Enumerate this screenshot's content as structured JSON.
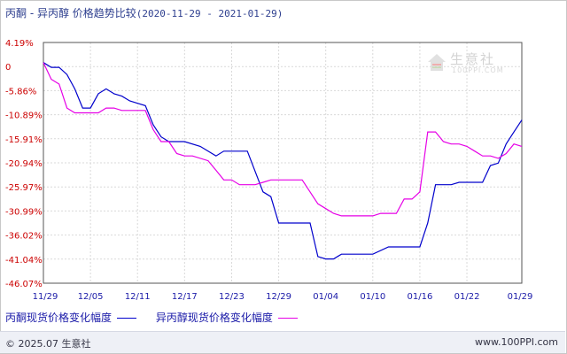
{
  "title": {
    "name": "丙酮 - 异丙醇 价格趋势比较",
    "range": "(2020-11-29 - 2021-01-29)"
  },
  "legend": {
    "series1": "丙酮现货价格变化幅度",
    "series2": "异丙醇现货价格变化幅度"
  },
  "footer": {
    "copyright": "© 2025.07 生意社",
    "url": "www.100PPI.com"
  },
  "watermark": {
    "cn": "生意社",
    "en": "100PPI.COM"
  },
  "colors": {
    "series1": "#0000cc",
    "series2": "#e600e6",
    "tick_labels": "#cc0000",
    "x_labels": "#1a1aa8"
  },
  "chart_data": {
    "type": "line",
    "title": "丙酮 - 异丙醇 价格趋势比较",
    "x_start": "11/29",
    "x_end": "01/29",
    "x_ticks": [
      "11/29",
      "12/05",
      "12/11",
      "12/17",
      "12/23",
      "12/29",
      "01/04",
      "01/10",
      "01/16",
      "01/22",
      "01/29"
    ],
    "y_ticks": [
      "4.19%",
      "0",
      "-5.86%",
      "-10.89%",
      "-15.91%",
      "-20.94%",
      "-25.97%",
      "-30.99%",
      "-36.02%",
      "-41.04%",
      "-46.07%"
    ],
    "ylim": [
      -46.07,
      4.19
    ],
    "grid": true,
    "series": [
      {
        "name": "丙酮现货价格变化幅度",
        "color": "#0000cc",
        "points": [
          [
            "11/29",
            0.0
          ],
          [
            "11/30",
            -1.0
          ],
          [
            "12/01",
            -1.0
          ],
          [
            "12/02",
            -2.5
          ],
          [
            "12/03",
            -5.5
          ],
          [
            "12/04",
            -9.5
          ],
          [
            "12/05",
            -9.5
          ],
          [
            "12/06",
            -6.5
          ],
          [
            "12/07",
            -5.5
          ],
          [
            "12/08",
            -6.5
          ],
          [
            "12/09",
            -7.0
          ],
          [
            "12/10",
            -8.0
          ],
          [
            "12/11",
            -8.5
          ],
          [
            "12/12",
            -9.0
          ],
          [
            "12/13",
            -13.0
          ],
          [
            "12/14",
            -15.5
          ],
          [
            "12/15",
            -16.5
          ],
          [
            "12/17",
            -16.5
          ],
          [
            "12/19",
            -17.5
          ],
          [
            "12/21",
            -19.5
          ],
          [
            "12/22",
            -18.5
          ],
          [
            "12/23",
            -18.5
          ],
          [
            "12/25",
            -18.5
          ],
          [
            "12/27",
            -27.0
          ],
          [
            "12/28",
            -28.0
          ],
          [
            "12/29",
            -33.5
          ],
          [
            "12/30",
            -33.5
          ],
          [
            "01/02",
            -33.5
          ],
          [
            "01/03",
            -40.5
          ],
          [
            "01/04",
            -41.0
          ],
          [
            "01/05",
            -41.0
          ],
          [
            "01/06",
            -40.0
          ],
          [
            "01/08",
            -40.0
          ],
          [
            "01/10",
            -40.0
          ],
          [
            "01/12",
            -38.5
          ],
          [
            "01/14",
            -38.5
          ],
          [
            "01/16",
            -38.5
          ],
          [
            "01/17",
            -33.5
          ],
          [
            "01/18",
            -25.5
          ],
          [
            "01/19",
            -25.5
          ],
          [
            "01/20",
            -25.5
          ],
          [
            "01/21",
            -25.0
          ],
          [
            "01/22",
            -25.0
          ],
          [
            "01/24",
            -25.0
          ],
          [
            "01/25",
            -21.5
          ],
          [
            "01/26",
            -21.0
          ],
          [
            "01/27",
            -17.0
          ],
          [
            "01/28",
            -14.5
          ],
          [
            "01/29",
            -12.0
          ]
        ]
      },
      {
        "name": "异丙醇现货价格变化幅度",
        "color": "#e600e6",
        "points": [
          [
            "11/29",
            0.0
          ],
          [
            "11/30",
            -3.5
          ],
          [
            "12/01",
            -4.5
          ],
          [
            "12/02",
            -9.5
          ],
          [
            "12/03",
            -10.5
          ],
          [
            "12/05",
            -10.5
          ],
          [
            "12/06",
            -10.5
          ],
          [
            "12/07",
            -9.5
          ],
          [
            "12/08",
            -9.5
          ],
          [
            "12/09",
            -10.0
          ],
          [
            "12/10",
            -10.0
          ],
          [
            "12/11",
            -10.0
          ],
          [
            "12/12",
            -10.0
          ],
          [
            "12/13",
            -14.0
          ],
          [
            "12/14",
            -16.5
          ],
          [
            "12/15",
            -16.5
          ],
          [
            "12/16",
            -19.0
          ],
          [
            "12/17",
            -19.5
          ],
          [
            "12/18",
            -19.5
          ],
          [
            "12/20",
            -20.5
          ],
          [
            "12/21",
            -22.5
          ],
          [
            "12/22",
            -24.5
          ],
          [
            "12/23",
            -24.5
          ],
          [
            "12/24",
            -25.5
          ],
          [
            "12/26",
            -25.5
          ],
          [
            "12/27",
            -25.0
          ],
          [
            "12/28",
            -24.5
          ],
          [
            "01/01",
            -24.5
          ],
          [
            "01/03",
            -29.5
          ],
          [
            "01/04",
            -30.5
          ],
          [
            "01/05",
            -31.5
          ],
          [
            "01/06",
            -32.0
          ],
          [
            "01/08",
            -32.0
          ],
          [
            "01/10",
            -32.0
          ],
          [
            "01/11",
            -31.5
          ],
          [
            "01/13",
            -31.5
          ],
          [
            "01/14",
            -28.5
          ],
          [
            "01/15",
            -28.5
          ],
          [
            "01/16",
            -27.0
          ],
          [
            "01/17",
            -14.5
          ],
          [
            "01/18",
            -14.5
          ],
          [
            "01/19",
            -16.5
          ],
          [
            "01/20",
            -17.0
          ],
          [
            "01/21",
            -17.0
          ],
          [
            "01/22",
            -17.5
          ],
          [
            "01/23",
            -18.5
          ],
          [
            "01/24",
            -19.5
          ],
          [
            "01/25",
            -19.5
          ],
          [
            "01/26",
            -20.0
          ],
          [
            "01/27",
            -19.0
          ],
          [
            "01/28",
            -17.0
          ],
          [
            "01/29",
            -17.5
          ]
        ]
      }
    ]
  }
}
